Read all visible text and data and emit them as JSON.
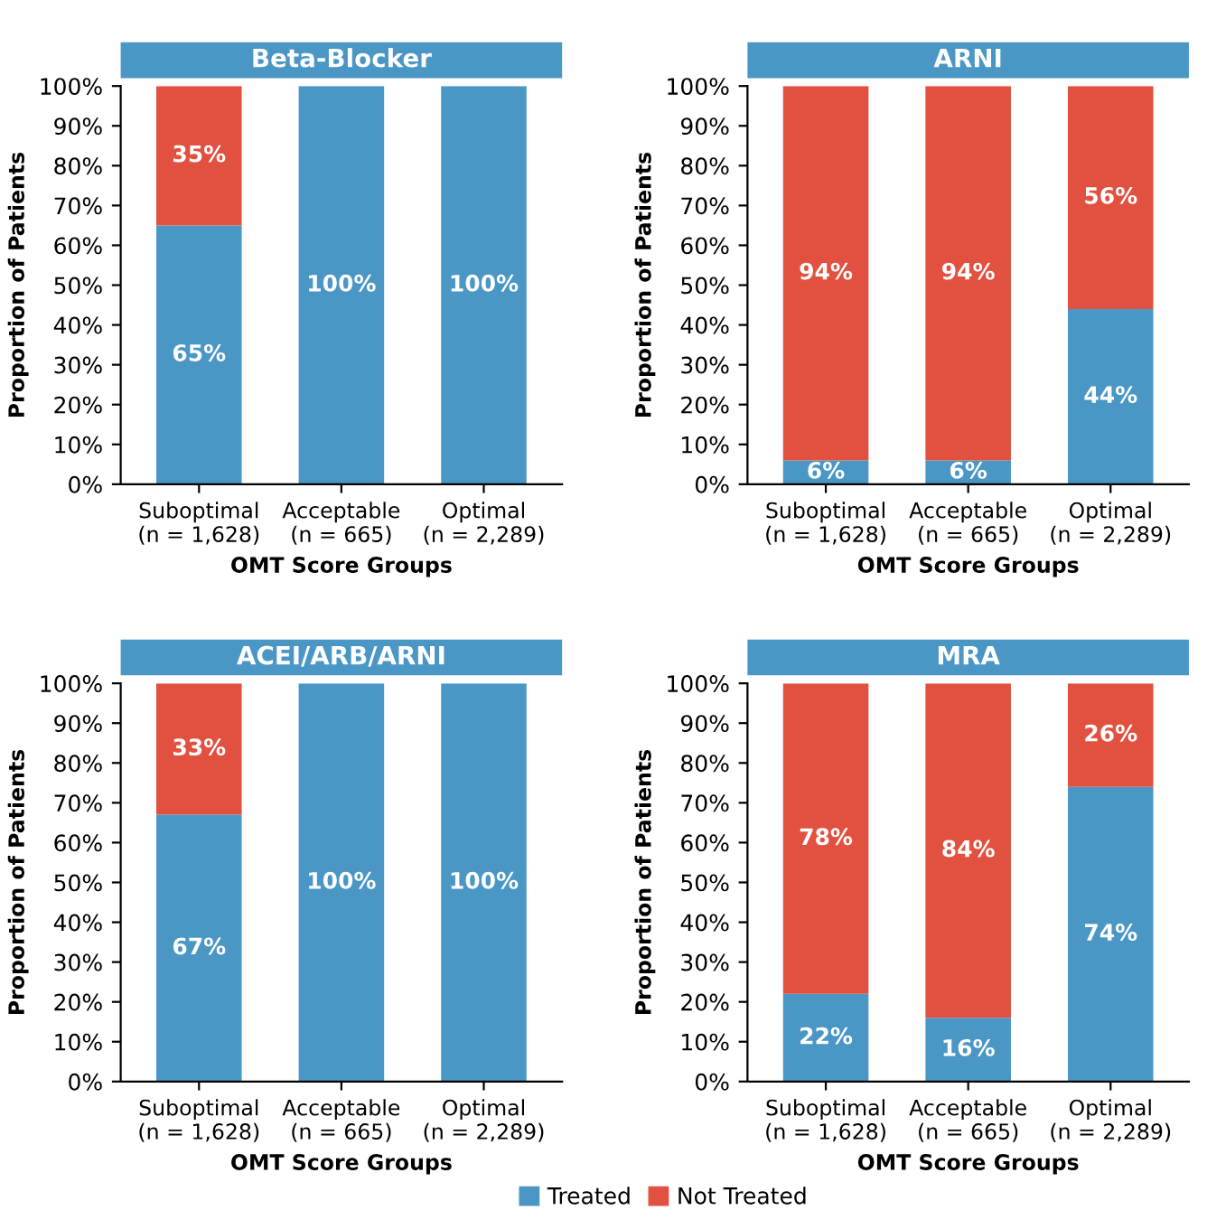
{
  "chart_data": [
    {
      "type": "bar",
      "stacked": true,
      "title": "Beta-Blocker",
      "xlabel": "OMT Score Groups",
      "ylabel": "Proportion of Patients",
      "categories": [
        "Suboptimal\n(n = 1,628)",
        "Acceptable\n(n = 665)",
        "Optimal\n(n = 2,289)"
      ],
      "series": [
        {
          "color": "#4a97c6",
          "values": [
            65,
            100,
            100
          ],
          "value_labels": [
            "65%",
            "100%",
            "100%"
          ]
        },
        {
          "color": "#e2513f",
          "values": [
            35,
            0,
            0
          ],
          "value_labels": [
            "35%",
            null,
            null
          ]
        }
      ],
      "ylim": [
        0,
        100
      ],
      "yticks": [
        {
          "value": 0,
          "label": "0%"
        },
        {
          "value": 10,
          "label": "10%"
        },
        {
          "value": 20,
          "label": "20%"
        },
        {
          "value": 30,
          "label": "30%"
        },
        {
          "value": 40,
          "label": "40%"
        },
        {
          "value": 50,
          "label": "50%"
        },
        {
          "value": 60,
          "label": "60%"
        },
        {
          "value": 70,
          "label": "70%"
        },
        {
          "value": 80,
          "label": "80%"
        },
        {
          "value": 90,
          "label": "90%"
        },
        {
          "value": 100,
          "label": "100%"
        }
      ],
      "grid": false,
      "legend": false
    },
    {
      "type": "bar",
      "stacked": true,
      "title": "ARNI",
      "xlabel": "OMT Score Groups",
      "ylabel": "Proportion of Patients",
      "categories": [
        "Suboptimal\n(n = 1,628)",
        "Acceptable\n(n = 665)",
        "Optimal\n(n = 2,289)"
      ],
      "series": [
        {
          "color": "#4a97c6",
          "values": [
            6,
            6,
            44
          ],
          "value_labels": [
            "6%",
            "6%",
            "44%"
          ]
        },
        {
          "color": "#e2513f",
          "values": [
            94,
            94,
            56
          ],
          "value_labels": [
            "94%",
            "94%",
            "56%"
          ]
        }
      ],
      "ylim": [
        0,
        100
      ],
      "yticks": [
        {
          "value": 0,
          "label": "0%"
        },
        {
          "value": 10,
          "label": "10%"
        },
        {
          "value": 20,
          "label": "20%"
        },
        {
          "value": 30,
          "label": "30%"
        },
        {
          "value": 40,
          "label": "40%"
        },
        {
          "value": 50,
          "label": "50%"
        },
        {
          "value": 60,
          "label": "60%"
        },
        {
          "value": 70,
          "label": "70%"
        },
        {
          "value": 80,
          "label": "80%"
        },
        {
          "value": 90,
          "label": "90%"
        },
        {
          "value": 100,
          "label": "100%"
        }
      ],
      "grid": false,
      "legend": false
    },
    {
      "type": "bar",
      "stacked": true,
      "title": "ACEI/ARB/ARNI",
      "xlabel": "OMT Score Groups",
      "ylabel": "Proportion of Patients",
      "categories": [
        "Suboptimal\n(n = 1,628)",
        "Acceptable\n(n = 665)",
        "Optimal\n(n = 2,289)"
      ],
      "series": [
        {
          "color": "#4a97c6",
          "values": [
            67,
            100,
            100
          ],
          "value_labels": [
            "67%",
            "100%",
            "100%"
          ]
        },
        {
          "color": "#e2513f",
          "values": [
            33,
            0,
            0
          ],
          "value_labels": [
            "33%",
            null,
            null
          ]
        }
      ],
      "ylim": [
        0,
        100
      ],
      "yticks": [
        {
          "value": 0,
          "label": "0%"
        },
        {
          "value": 10,
          "label": "10%"
        },
        {
          "value": 20,
          "label": "20%"
        },
        {
          "value": 30,
          "label": "30%"
        },
        {
          "value": 40,
          "label": "40%"
        },
        {
          "value": 50,
          "label": "50%"
        },
        {
          "value": 60,
          "label": "60%"
        },
        {
          "value": 70,
          "label": "70%"
        },
        {
          "value": 80,
          "label": "80%"
        },
        {
          "value": 90,
          "label": "90%"
        },
        {
          "value": 100,
          "label": "100%"
        }
      ],
      "grid": false,
      "legend": false
    },
    {
      "type": "bar",
      "stacked": true,
      "title": "MRA",
      "xlabel": "OMT Score Groups",
      "ylabel": "Proportion of Patients",
      "categories": [
        "Suboptimal\n(n = 1,628)",
        "Acceptable\n(n = 665)",
        "Optimal\n(n = 2,289)"
      ],
      "series": [
        {
          "name": "Treated",
          "color": "#4a97c6",
          "values": [
            22,
            16,
            74
          ],
          "value_labels": [
            "22%",
            "16%",
            "74%"
          ]
        },
        {
          "name": "Not Treated",
          "color": "#e2513f",
          "values": [
            78,
            84,
            26
          ],
          "value_labels": [
            "78%",
            "84%",
            "26%"
          ]
        }
      ],
      "ylim": [
        0,
        100
      ],
      "yticks": [
        {
          "value": 0,
          "label": "0%"
        },
        {
          "value": 10,
          "label": "10%"
        },
        {
          "value": 20,
          "label": "20%"
        },
        {
          "value": 30,
          "label": "30%"
        },
        {
          "value": 40,
          "label": "40%"
        },
        {
          "value": 50,
          "label": "50%"
        },
        {
          "value": 60,
          "label": "60%"
        },
        {
          "value": 70,
          "label": "70%"
        },
        {
          "value": 80,
          "label": "80%"
        },
        {
          "value": 90,
          "label": "90%"
        },
        {
          "value": 100,
          "label": "100%"
        }
      ],
      "grid": false,
      "legend": "bottom"
    }
  ]
}
